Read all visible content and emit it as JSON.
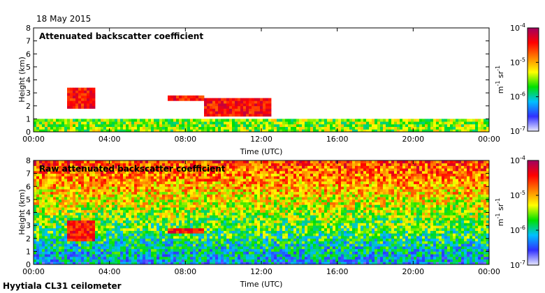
{
  "date": "18 May 2015",
  "footer": "Hyytiala CL31 ceilometer",
  "chart_data": [
    {
      "type": "heatmap",
      "title": "Attenuated backscatter coefficient",
      "xlabel": "Time (UTC)",
      "ylabel": "Height (km)",
      "xlim": [
        0,
        24
      ],
      "ylim": [
        0,
        8
      ],
      "x_ticks": [
        "00:00",
        "04:00",
        "08:00",
        "12:00",
        "16:00",
        "20:00",
        "00:00"
      ],
      "y_ticks": [
        "0",
        "1",
        "2",
        "3",
        "4",
        "5",
        "6",
        "7",
        "8"
      ],
      "colorbar": {
        "label": "m",
        "label_parts": [
          "m",
          "-1",
          " sr",
          "-1"
        ],
        "scale": "log",
        "range": [
          1e-07,
          0.0001
        ],
        "ticks": [
          {
            "base": "10",
            "exp": "-4"
          },
          {
            "base": "10",
            "exp": "-5"
          },
          {
            "base": "10",
            "exp": "-6"
          },
          {
            "base": "10",
            "exp": "-7"
          }
        ],
        "colors": [
          "#e8e8ff",
          "#3030ff",
          "#00c0ff",
          "#00e000",
          "#ffff00",
          "#ff8000",
          "#ff0000",
          "#a00060"
        ]
      },
      "features": [
        {
          "name": "boundary layer",
          "x": [
            0,
            24
          ],
          "y": [
            0,
            1.0
          ]
        },
        {
          "name": "cloud layer",
          "x": [
            1.8,
            3.3
          ],
          "y": [
            1.8,
            3.3
          ]
        },
        {
          "name": "cloud layer",
          "x": [
            7.1,
            9.0
          ],
          "y": [
            2.5,
            2.8
          ]
        },
        {
          "name": "cloud layer",
          "x": [
            9.0,
            12.5
          ],
          "y": [
            1.2,
            2.5
          ]
        }
      ]
    },
    {
      "type": "heatmap",
      "title": "Raw attenuated backscatter coefficient",
      "xlabel": "Time (UTC)",
      "ylabel": "Height (km)",
      "xlim": [
        0,
        24
      ],
      "ylim": [
        0,
        8
      ],
      "x_ticks": [
        "00:00",
        "04:00",
        "08:00",
        "12:00",
        "16:00",
        "20:00",
        "00:00"
      ],
      "y_ticks": [
        "0",
        "1",
        "2",
        "3",
        "4",
        "5",
        "6",
        "7",
        "8"
      ],
      "colorbar": {
        "label": "m",
        "label_parts": [
          "m",
          "-1",
          " sr",
          "-1"
        ],
        "scale": "log",
        "range": [
          1e-07,
          0.0001
        ],
        "ticks": [
          {
            "base": "10",
            "exp": "-4"
          },
          {
            "base": "10",
            "exp": "-5"
          },
          {
            "base": "10",
            "exp": "-6"
          },
          {
            "base": "10",
            "exp": "-7"
          }
        ],
        "colors": [
          "#e8e8ff",
          "#3030ff",
          "#00c0ff",
          "#00e000",
          "#ffff00",
          "#ff8000",
          "#ff0000",
          "#a00060"
        ]
      },
      "features": [
        {
          "name": "noise",
          "x": [
            0,
            24
          ],
          "y": [
            0,
            8
          ]
        },
        {
          "name": "cloud layer",
          "x": [
            1.8,
            3.3
          ],
          "y": [
            1.8,
            3.3
          ]
        },
        {
          "name": "cloud layer",
          "x": [
            7.1,
            9.0
          ],
          "y": [
            2.5,
            2.8
          ]
        }
      ]
    }
  ]
}
